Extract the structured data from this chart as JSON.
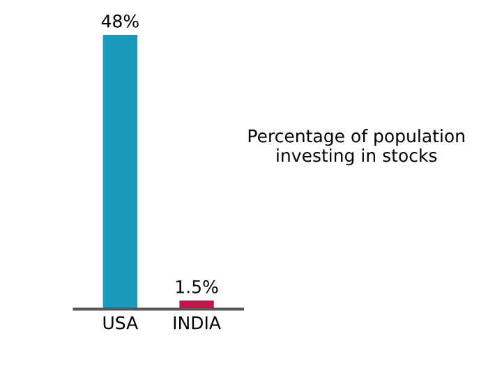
{
  "chart_data": {
    "type": "bar",
    "title": "Percentage of population investing in stocks",
    "categories": [
      "USA",
      "INDIA"
    ],
    "values": [
      48,
      1.5
    ],
    "colors": [
      "#1a9bbb",
      "#c0174b"
    ],
    "value_labels": [
      "48%",
      "1.5%"
    ],
    "grid": false,
    "legend": false
  }
}
